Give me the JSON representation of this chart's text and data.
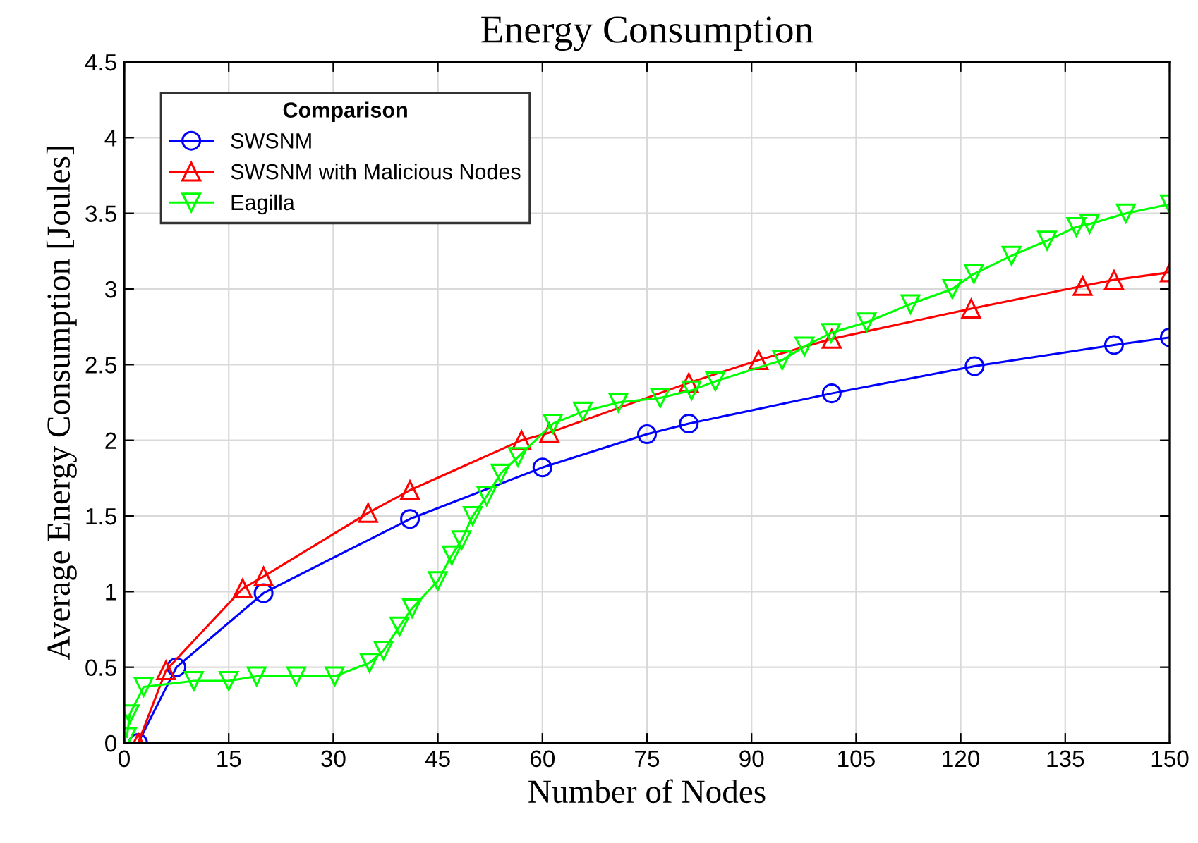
{
  "chart_data": {
    "type": "line",
    "title": "Energy Consumption",
    "xlabel": "Number of Nodes",
    "ylabel": "Average Energy Consumption [Joules]",
    "legend_title": "Comparison",
    "legend": "top left",
    "grid": true,
    "line_style": "solid",
    "xlim": [
      0,
      150
    ],
    "xticks": [
      0,
      15,
      30,
      45,
      60,
      75,
      90,
      105,
      120,
      135,
      150
    ],
    "ylim": [
      0,
      4.5
    ],
    "yticks": [
      0,
      0.5,
      1,
      1.5,
      2,
      2.5,
      3,
      3.5,
      4,
      4.5
    ],
    "series": [
      {
        "name": "SWSNM",
        "color": "#0000ff",
        "marker": "circle",
        "x": [
          2,
          7.5,
          20,
          41,
          60,
          75,
          81,
          101.5,
          122,
          142,
          150
        ],
        "values": [
          0,
          0.5,
          0.99,
          1.48,
          1.82,
          2.04,
          2.11,
          2.31,
          2.49,
          2.63,
          2.68
        ]
      },
      {
        "name": "SWSNM with Malicious Nodes",
        "color": "#ff0000",
        "marker": "triangle",
        "x": [
          2,
          6,
          17,
          20,
          35,
          41,
          57,
          61,
          81,
          91,
          101.5,
          121.5,
          137.5,
          142,
          150
        ],
        "values": [
          0,
          0.48,
          1.02,
          1.1,
          1.52,
          1.67,
          2.0,
          2.05,
          2.38,
          2.53,
          2.67,
          2.87,
          3.02,
          3.06,
          3.11
        ]
      },
      {
        "name": "Eagilla",
        "color": "#00ff00",
        "marker": "triangle_down",
        "x": [
          0.4,
          0.8,
          2.8,
          10,
          15,
          19,
          24.7,
          30.2,
          35.2,
          37.2,
          39.5,
          41.3,
          45,
          47,
          48.4,
          50,
          52,
          54,
          56.5,
          61.5,
          65.8,
          70.9,
          76.9,
          81.4,
          84.8,
          94.4,
          97.6,
          101.4,
          106.5,
          112.8,
          118.8,
          121.9,
          127.3,
          132.4,
          136.6,
          138.5,
          143.7,
          150
        ],
        "values": [
          0.04,
          0.19,
          0.37,
          0.41,
          0.41,
          0.44,
          0.44,
          0.44,
          0.53,
          0.61,
          0.77,
          0.89,
          1.07,
          1.24,
          1.34,
          1.5,
          1.63,
          1.78,
          1.89,
          2.11,
          2.19,
          2.25,
          2.28,
          2.33,
          2.39,
          2.53,
          2.62,
          2.71,
          2.78,
          2.9,
          3.0,
          3.1,
          3.22,
          3.32,
          3.41,
          3.43,
          3.5,
          3.56
        ]
      }
    ]
  }
}
